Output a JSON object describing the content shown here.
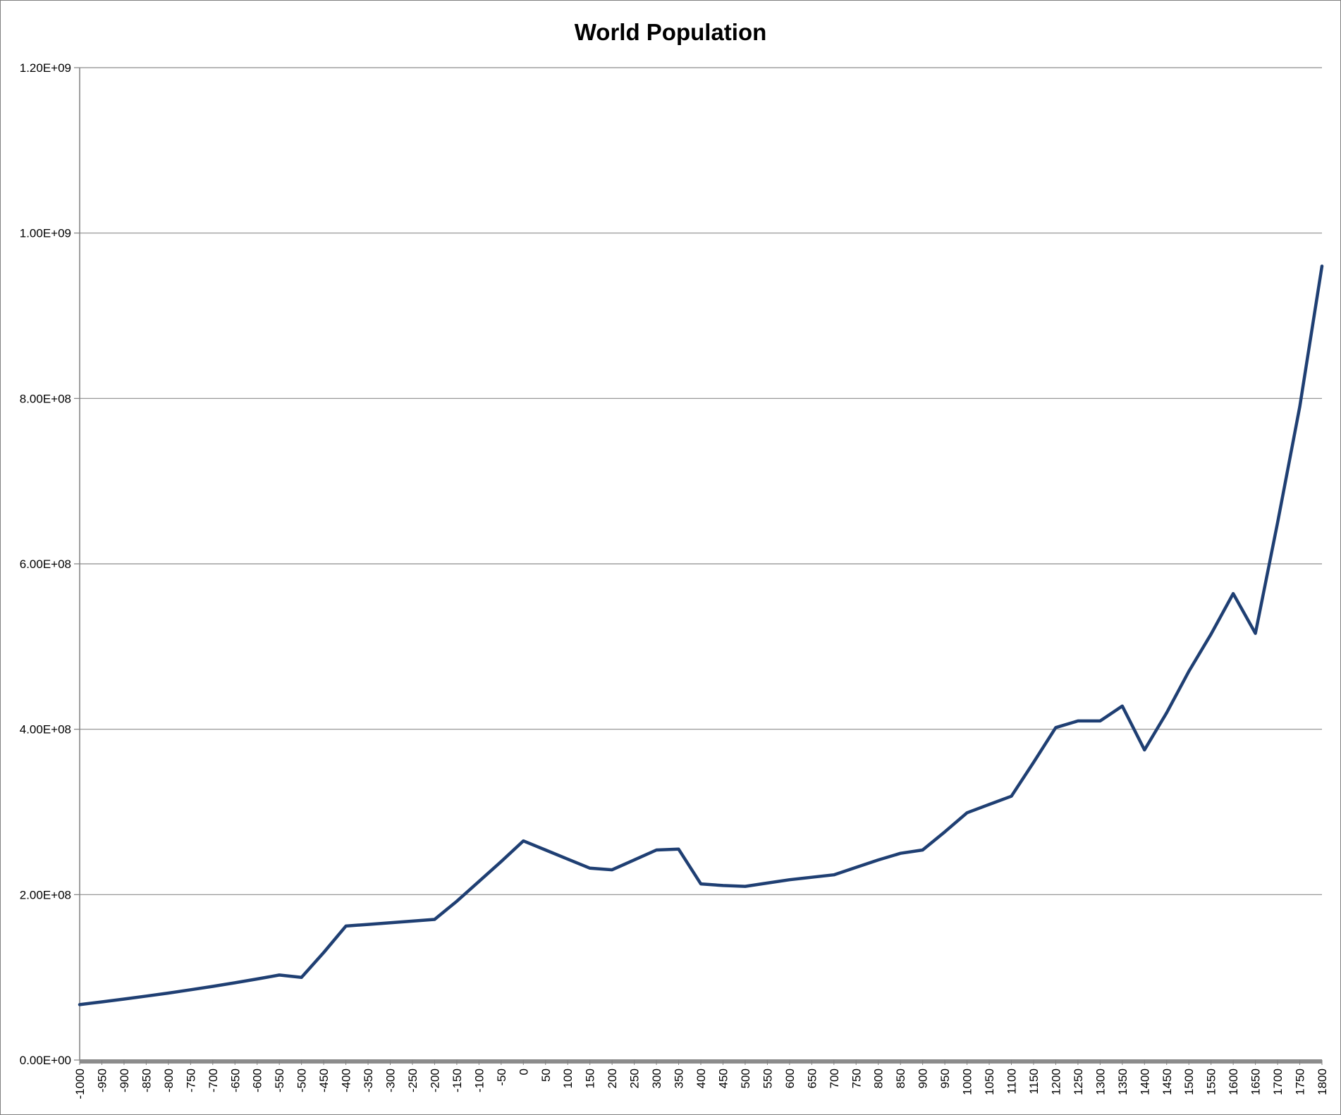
{
  "chart_data": {
    "type": "line",
    "title": "World Population",
    "xlabel": "",
    "ylabel": "",
    "grid": true,
    "legend": "none",
    "line_color": "#1f3f73",
    "ylim": [
      0,
      1200000000
    ],
    "yticks": [
      0,
      200000000,
      400000000,
      600000000,
      800000000,
      1000000000,
      1200000000
    ],
    "ytick_labels": [
      "0.00E+00",
      "2.00E+08",
      "4.00E+08",
      "6.00E+08",
      "8.00E+08",
      "1.00E+09",
      "1.20E+09"
    ],
    "categories": [
      "-1000",
      "-950",
      "-900",
      "-850",
      "-800",
      "-750",
      "-700",
      "-650",
      "-600",
      "-550",
      "-500",
      "-450",
      "-400",
      "-350",
      "-300",
      "-250",
      "-200",
      "-150",
      "-100",
      "-50",
      "0",
      "50",
      "100",
      "150",
      "200",
      "250",
      "300",
      "350",
      "400",
      "450",
      "500",
      "550",
      "600",
      "650",
      "700",
      "750",
      "800",
      "850",
      "900",
      "950",
      "1000",
      "1050",
      "1100",
      "1150",
      "1200",
      "1250",
      "1300",
      "1350",
      "1400",
      "1450",
      "1500",
      "1550",
      "1600",
      "1650",
      "1700",
      "1750",
      "1800"
    ],
    "series": [
      {
        "values": [
          67000000,
          70300000,
          73700000,
          77300000,
          81000000,
          85000000,
          89100000,
          93400000,
          98000000,
          102800000,
          100000000,
          130000000,
          162000000,
          164000000,
          166000000,
          168000000,
          170000000,
          192000000,
          216000000,
          240000000,
          265000000,
          254000000,
          243000000,
          232000000,
          230000000,
          242000000,
          254000000,
          255000000,
          213000000,
          211000000,
          210000000,
          214000000,
          218000000,
          221000000,
          224000000,
          233000000,
          242000000,
          250000000,
          254000000,
          276000000,
          299000000,
          309000000,
          319000000,
          360000000,
          402000000,
          410000000,
          410000000,
          428000000,
          375000000,
          420000000,
          470000000,
          515000000,
          564000000,
          516000000,
          650000000,
          790000000,
          960000000
        ]
      }
    ]
  }
}
